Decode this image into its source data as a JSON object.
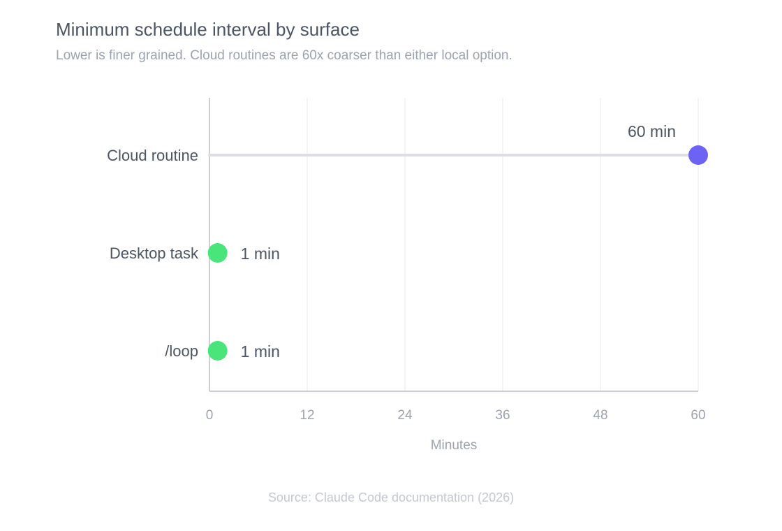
{
  "header": {
    "title": "Minimum schedule interval by surface",
    "subtitle": "Lower is finer grained. Cloud routines are 60x coarser than either local option."
  },
  "footer": {
    "source": "Source: Claude Code documentation (2026)"
  },
  "colors": {
    "cloud": "#6c63f5",
    "local": "#4ae57a",
    "axis": "#aab0ba",
    "grid": "#e6e8ec",
    "stem": "#dcdee3"
  },
  "chart_data": {
    "type": "scatter",
    "title": "Minimum schedule interval by surface",
    "subtitle": "Lower is finer grained. Cloud routines are 60x coarser than either local option.",
    "xlabel": "Minutes",
    "ylabel": "",
    "xlim": [
      0,
      60
    ],
    "xticks": [
      0,
      12,
      24,
      36,
      48,
      60
    ],
    "grid": true,
    "categories": [
      "Cloud routine",
      "Desktop task",
      "/loop"
    ],
    "points": [
      {
        "category": "Cloud routine",
        "value": 60,
        "label": "60 min",
        "color": "#6c63f5"
      },
      {
        "category": "Desktop task",
        "value": 1,
        "label": "1 min",
        "color": "#4ae57a"
      },
      {
        "category": "/loop",
        "value": 1,
        "label": "1 min",
        "color": "#4ae57a"
      }
    ]
  }
}
